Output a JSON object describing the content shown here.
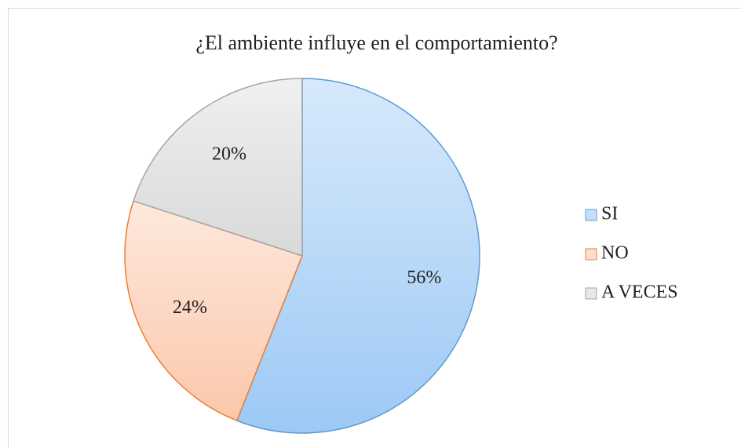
{
  "chart_data": {
    "type": "pie",
    "title": "¿El ambiente influye en el comportamiento?",
    "categories": [
      "SI",
      "NO",
      "A VECES"
    ],
    "values": [
      56,
      24,
      20
    ],
    "value_labels": [
      "56%",
      "24%",
      "20%"
    ],
    "colors": [
      "#9cc9f5",
      "#fbc7ab",
      "#d9d9d9"
    ],
    "edgecolors": [
      "#5b9bd5",
      "#ed7d31",
      "#a5a5a5"
    ],
    "legend": "right"
  }
}
